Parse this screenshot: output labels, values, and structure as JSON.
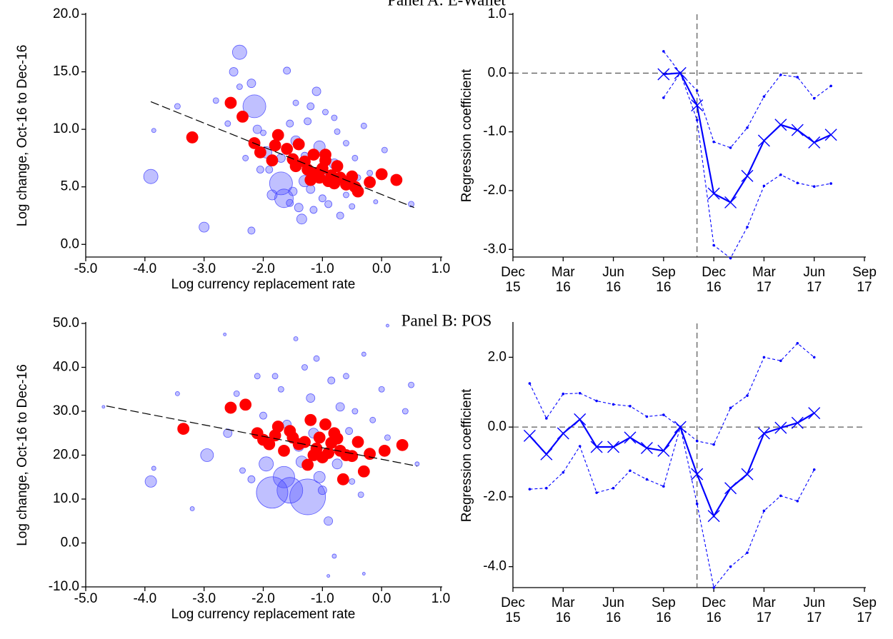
{
  "panels": [
    "Panel A: E-Wallet",
    "Panel B: POS"
  ],
  "chart_data": [
    {
      "type": "scatter",
      "xlabel": "Log currency replacement rate",
      "ylabel": "Log change, Oct-16 to Dec-16",
      "xlim": [
        -5.0,
        1.0
      ],
      "ylim": [
        -1.1,
        20.0
      ],
      "xticks": [
        {
          "value": -5,
          "label": "-5.0"
        },
        {
          "value": -4,
          "label": "-4.0"
        },
        {
          "value": -3,
          "label": "-3.0"
        },
        {
          "value": -2,
          "label": "-2.0"
        },
        {
          "value": -1,
          "label": "-1.0"
        },
        {
          "value": 0,
          "label": "0.0"
        },
        {
          "value": 1,
          "label": "1.0"
        }
      ],
      "yticks": [
        {
          "value": 0,
          "label": "0.0"
        },
        {
          "value": 5,
          "label": "5.0"
        },
        {
          "value": 10,
          "label": "10.0"
        },
        {
          "value": 15,
          "label": "15.0"
        },
        {
          "value": 20,
          "label": "20.0"
        }
      ],
      "series": [
        {
          "color": "#4a4aff",
          "opacity": 0.35,
          "x": [
            -3.9,
            -3.85,
            -3.45,
            -3.0,
            -2.5,
            -2.4,
            -2.2,
            -2.4,
            -2.15,
            -2.1,
            -2.05,
            -1.95,
            -1.85,
            -1.7,
            -1.65,
            -1.55,
            -1.6,
            -1.45,
            -1.4,
            -1.35,
            -1.3,
            -1.25,
            -1.2,
            -1.1,
            -1.05,
            -1.0,
            -0.95,
            -0.9,
            -0.8,
            -0.75,
            -0.7,
            -0.6,
            -0.5,
            -0.45,
            -0.3,
            -0.2,
            -0.1,
            0.05,
            0.2,
            0.5,
            -2.2,
            -1.9,
            -1.5,
            -1.2,
            -1.0,
            -0.9,
            -1.7,
            -1.3,
            -2.3,
            -2.0,
            -0.6,
            -0.4,
            -1.15,
            -1.55,
            -1.45,
            -2.6,
            -2.8,
            -0.8
          ],
          "values": [
            5.9,
            9.9,
            12.0,
            1.5,
            15.0,
            16.7,
            14.0,
            13.7,
            12.0,
            10.0,
            6.5,
            8.0,
            4.3,
            5.3,
            4.0,
            10.5,
            15.1,
            9.0,
            3.2,
            2.2,
            5.5,
            10.7,
            12.0,
            13.3,
            8.5,
            4.0,
            11.5,
            3.5,
            7.0,
            9.8,
            2.5,
            8.8,
            3.3,
            7.5,
            10.3,
            6.2,
            3.7,
            8.2,
            5.8,
            3.5,
            1.2,
            6.5,
            4.6,
            4.8,
            6.2,
            5.5,
            7.5,
            7.7,
            7.5,
            9.7,
            4.3,
            5.8,
            3.0,
            3.6,
            12.3,
            10.5,
            12.5,
            11.0
          ],
          "sizes": [
            10,
            3,
            4,
            7,
            6,
            10,
            6,
            4,
            16,
            6,
            5,
            8,
            7,
            16,
            13,
            5,
            5,
            7,
            6,
            7,
            8,
            5,
            5,
            6,
            8,
            5,
            4,
            5,
            7,
            4,
            5,
            4,
            4,
            4,
            4,
            4,
            3,
            4,
            3,
            4,
            5,
            5,
            6,
            6,
            6,
            6,
            6,
            5,
            4,
            4,
            4,
            4,
            5,
            5,
            4,
            4,
            4,
            4
          ]
        },
        {
          "color": "#ff0000",
          "size": 8,
          "x": [
            -3.2,
            -2.55,
            -2.35,
            -2.15,
            -2.05,
            -1.85,
            -1.75,
            -1.8,
            -1.6,
            -1.5,
            -1.45,
            -1.4,
            -1.3,
            -1.25,
            -1.15,
            -1.1,
            -1.05,
            -1.0,
            -0.95,
            -0.9,
            -0.85,
            -0.8,
            -0.75,
            -0.7,
            -0.6,
            -0.55,
            -0.45,
            -0.4,
            -0.5,
            -0.2,
            0.0,
            0.25,
            -1.2,
            -0.95
          ],
          "values": [
            9.3,
            12.3,
            11.1,
            8.8,
            8.0,
            7.3,
            9.5,
            8.6,
            8.3,
            7.4,
            6.8,
            8.7,
            7.2,
            6.5,
            7.8,
            6.2,
            5.8,
            6.6,
            7.3,
            5.5,
            6.0,
            5.3,
            6.8,
            5.8,
            5.2,
            5.5,
            5.0,
            4.6,
            5.9,
            5.4,
            6.1,
            5.6,
            5.6,
            7.8
          ]
        }
      ],
      "fit_line": {
        "x": [
          -3.9,
          0.55
        ],
        "y": [
          12.4,
          3.2
        ]
      }
    },
    {
      "type": "line",
      "ylabel": "Regression coefficient",
      "xlim": [
        "2015-12",
        "2017-09"
      ],
      "ylim": [
        -3.13,
        1.0
      ],
      "xticks": [
        {
          "value": "2015-12",
          "label": [
            "Dec",
            "15"
          ]
        },
        {
          "value": "2016-03",
          "label": [
            "Mar",
            "16"
          ]
        },
        {
          "value": "2016-06",
          "label": [
            "Jun",
            "16"
          ]
        },
        {
          "value": "2016-09",
          "label": [
            "Sep",
            "16"
          ]
        },
        {
          "value": "2016-12",
          "label": [
            "Dec",
            "16"
          ]
        },
        {
          "value": "2017-03",
          "label": [
            "Mar",
            "17"
          ]
        },
        {
          "value": "2017-06",
          "label": [
            "Jun",
            "17"
          ]
        },
        {
          "value": "2017-09",
          "label": [
            "Sep",
            "17"
          ]
        }
      ],
      "yticks": [
        {
          "value": -3,
          "label": "-3.0"
        },
        {
          "value": -2,
          "label": "-2.0"
        },
        {
          "value": -1,
          "label": "-1.0"
        },
        {
          "value": 0,
          "label": "0.0"
        },
        {
          "value": 1,
          "label": "1.0"
        }
      ],
      "hline": 0,
      "vline": "2016-11",
      "x": [
        "2016-09",
        "2016-10",
        "2016-11",
        "2016-12",
        "2017-01",
        "2017-02",
        "2017-03",
        "2017-04",
        "2017-05",
        "2017-06",
        "2017-07"
      ],
      "series": [
        {
          "color": "#0000ff",
          "style": "solid",
          "marker": "x",
          "values": [
            -0.02,
            0.0,
            -0.55,
            -2.05,
            -2.2,
            -1.75,
            -1.15,
            -0.88,
            -0.97,
            -1.18,
            -1.05
          ]
        },
        {
          "color": "#0000ff",
          "style": "dashed",
          "marker": "dot",
          "values": [
            0.37,
            0.0,
            -0.3,
            -1.17,
            -1.27,
            -0.93,
            -0.4,
            -0.03,
            -0.07,
            -0.43,
            -0.22
          ]
        },
        {
          "color": "#0000ff",
          "style": "dashed",
          "marker": "dot",
          "values": [
            -0.42,
            0.0,
            -0.8,
            -2.93,
            -3.15,
            -2.62,
            -1.92,
            -1.73,
            -1.87,
            -1.93,
            -1.88
          ]
        }
      ]
    },
    {
      "type": "scatter",
      "xlabel": "Log currency replacement rate",
      "ylabel": "Log change, Oct-16 to Dec-16",
      "xlim": [
        -5.0,
        1.0
      ],
      "ylim": [
        -10.0,
        50.0
      ],
      "xticks": [
        {
          "value": -5,
          "label": "-5.0"
        },
        {
          "value": -4,
          "label": "-4.0"
        },
        {
          "value": -3,
          "label": "-3.0"
        },
        {
          "value": -2,
          "label": "-2.0"
        },
        {
          "value": -1,
          "label": "-1.0"
        },
        {
          "value": 0,
          "label": "0.0"
        },
        {
          "value": 1,
          "label": "1.0"
        }
      ],
      "yticks": [
        {
          "value": -10,
          "label": "-10.0"
        },
        {
          "value": 0,
          "label": "0.0"
        },
        {
          "value": 10,
          "label": "10.0"
        },
        {
          "value": 20,
          "label": "20.0"
        },
        {
          "value": 30,
          "label": "30.0"
        },
        {
          "value": 40,
          "label": "40.0"
        },
        {
          "value": 50,
          "label": "50.0"
        }
      ],
      "series": [
        {
          "color": "#4a4aff",
          "opacity": 0.35,
          "x": [
            -4.7,
            -3.9,
            -3.85,
            -3.45,
            -3.2,
            -2.95,
            -2.65,
            -2.6,
            -2.45,
            -2.2,
            -2.0,
            -1.85,
            -1.8,
            -1.65,
            -1.55,
            -1.4,
            -1.3,
            -1.25,
            -1.2,
            -1.1,
            -1.05,
            -0.95,
            -0.9,
            -0.85,
            -0.8,
            -0.7,
            -0.6,
            -0.5,
            -0.45,
            -0.3,
            -0.3,
            -0.15,
            0.0,
            0.1,
            0.1,
            0.4,
            0.5,
            0.6,
            -1.6,
            -1.95,
            -1.35,
            -1.0,
            -0.75,
            -2.35,
            -1.7,
            -1.15,
            -0.55,
            -0.35,
            -2.1,
            -1.45,
            -0.9
          ],
          "values": [
            31.0,
            14.0,
            17.0,
            34.0,
            7.8,
            20.0,
            47.5,
            25.0,
            34.0,
            14.5,
            29.0,
            11.5,
            38.0,
            15.0,
            12.0,
            22.0,
            40.0,
            10.5,
            33.0,
            42.0,
            15.0,
            27.0,
            5.0,
            37.0,
            -3.0,
            31.0,
            38.0,
            14.0,
            30.0,
            43.0,
            -7.0,
            28.0,
            35.0,
            49.5,
            24.0,
            30.0,
            36.0,
            18.0,
            27.0,
            18.0,
            18.5,
            12.0,
            18.0,
            16.5,
            35.0,
            25.0,
            25.5,
            11.0,
            38.0,
            46.5,
            -7.5
          ],
          "sizes": [
            2,
            8,
            3,
            3,
            3,
            9,
            2,
            6,
            4,
            5,
            5,
            22,
            4,
            15,
            18,
            7,
            4,
            25,
            6,
            4,
            8,
            7,
            6,
            5,
            3,
            6,
            4,
            4,
            4,
            3,
            2,
            4,
            4,
            2,
            4,
            4,
            4,
            3,
            6,
            10,
            8,
            6,
            7,
            4,
            4,
            7,
            5,
            4,
            4,
            3,
            2
          ]
        },
        {
          "color": "#ff0000",
          "size": 8,
          "x": [
            -3.35,
            -2.55,
            -2.3,
            -2.1,
            -2.0,
            -1.9,
            -1.8,
            -1.75,
            -1.65,
            -1.55,
            -1.5,
            -1.4,
            -1.3,
            -1.25,
            -1.2,
            -1.1,
            -1.05,
            -1.0,
            -0.95,
            -0.9,
            -0.85,
            -0.8,
            -0.7,
            -0.65,
            -0.6,
            -0.5,
            -0.4,
            -0.3,
            -0.2,
            0.05,
            0.35,
            -1.15,
            -0.75
          ],
          "values": [
            26.0,
            30.8,
            31.5,
            25.0,
            23.5,
            22.5,
            24.5,
            26.5,
            21.0,
            25.5,
            24.0,
            22.5,
            23.0,
            17.8,
            28.0,
            21.5,
            24.0,
            19.5,
            27.0,
            20.5,
            22.8,
            25.0,
            21.0,
            14.5,
            20.0,
            19.8,
            23.0,
            16.3,
            20.3,
            21.0,
            22.3,
            20.0,
            23.8
          ]
        }
      ],
      "fit_line": {
        "x": [
          -4.65,
          0.6
        ],
        "y": [
          31.2,
          17.5
        ]
      }
    },
    {
      "type": "line",
      "ylabel": "Regression coefficient",
      "xlim": [
        "2015-12",
        "2017-09"
      ],
      "ylim": [
        -4.6,
        2.97
      ],
      "xticks": [
        {
          "value": "2015-12",
          "label": [
            "Dec",
            "15"
          ]
        },
        {
          "value": "2016-03",
          "label": [
            "Mar",
            "16"
          ]
        },
        {
          "value": "2016-06",
          "label": [
            "Jun",
            "16"
          ]
        },
        {
          "value": "2016-09",
          "label": [
            "Sep",
            "16"
          ]
        },
        {
          "value": "2016-12",
          "label": [
            "Dec",
            "16"
          ]
        },
        {
          "value": "2017-03",
          "label": [
            "Mar",
            "17"
          ]
        },
        {
          "value": "2017-06",
          "label": [
            "Jun",
            "17"
          ]
        },
        {
          "value": "2017-09",
          "label": [
            "Sep",
            "17"
          ]
        }
      ],
      "yticks": [
        {
          "value": -4,
          "label": "-4.0"
        },
        {
          "value": -2,
          "label": "-2.0"
        },
        {
          "value": 0,
          "label": "0.0"
        },
        {
          "value": 2,
          "label": "2.0"
        }
      ],
      "hline": 0,
      "vline": "2016-11",
      "x": [
        "2016-01",
        "2016-02",
        "2016-03",
        "2016-04",
        "2016-05",
        "2016-06",
        "2016-07",
        "2016-08",
        "2016-09",
        "2016-10",
        "2016-11",
        "2016-12",
        "2017-01",
        "2017-02",
        "2017-03",
        "2017-04",
        "2017-05",
        "2017-06"
      ],
      "series": [
        {
          "color": "#0000ff",
          "style": "solid",
          "marker": "x",
          "values": [
            -0.25,
            -0.78,
            -0.18,
            0.22,
            -0.57,
            -0.57,
            -0.3,
            -0.6,
            -0.68,
            0.0,
            -1.35,
            -2.55,
            -1.75,
            -1.35,
            -0.18,
            -0.02,
            0.12,
            0.4
          ]
        },
        {
          "color": "#0000ff",
          "style": "dashed",
          "marker": "dot",
          "values": [
            1.25,
            0.25,
            0.95,
            0.97,
            0.75,
            0.65,
            0.6,
            0.3,
            0.35,
            0.0,
            -0.4,
            -0.5,
            0.55,
            0.9,
            2.0,
            1.9,
            2.4,
            2.0
          ]
        },
        {
          "color": "#0000ff",
          "style": "dashed",
          "marker": "dot",
          "values": [
            -1.78,
            -1.75,
            -1.3,
            -0.55,
            -1.88,
            -1.75,
            -1.25,
            -1.5,
            -1.7,
            0.0,
            -2.2,
            -4.6,
            -4.0,
            -3.6,
            -2.4,
            -1.97,
            -2.12,
            -1.22
          ]
        }
      ]
    }
  ]
}
